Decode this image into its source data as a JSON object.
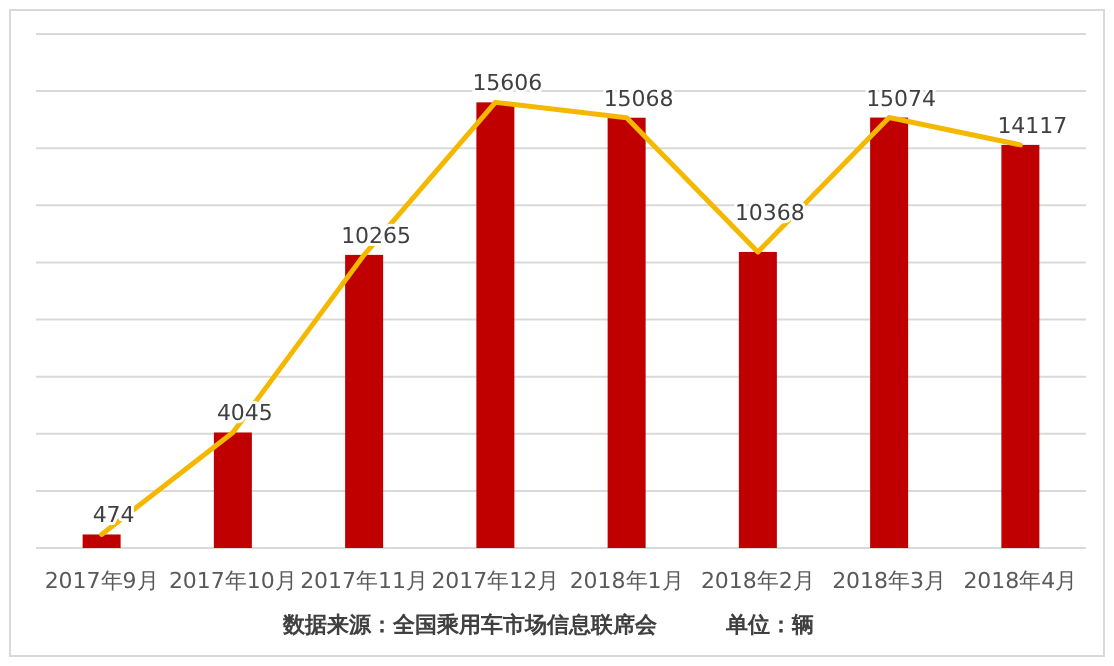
{
  "chart_data": {
    "type": "bar",
    "categories": [
      "2017年9月",
      "2017年10月",
      "2017年11月",
      "2017年12月",
      "2018年1月",
      "2018年2月",
      "2018年3月",
      "2018年4月"
    ],
    "series": [
      {
        "color": "#c00000",
        "values": [
          474,
          4045,
          10265,
          15606,
          15068,
          10368,
          15074,
          14117
        ],
        "value_labels": [
          "474",
          "4045",
          "10265",
          "15606",
          "15068",
          "10368",
          "15074",
          "14117"
        ]
      },
      {
        "type": "line",
        "color": "#f5b800",
        "values": [
          474,
          4045,
          10265,
          15606,
          15068,
          10368,
          15074,
          14117
        ]
      }
    ],
    "ylim": [
      0,
      18000
    ],
    "yticks": [
      {
        "value": 0,
        "label": null
      },
      {
        "value": 2000,
        "label": null
      },
      {
        "value": 4000,
        "label": null
      },
      {
        "value": 6000,
        "label": null
      },
      {
        "value": 8000,
        "label": null
      },
      {
        "value": 10000,
        "label": null
      },
      {
        "value": 12000,
        "label": null
      },
      {
        "value": 14000,
        "label": null
      },
      {
        "value": 16000,
        "label": null
      },
      {
        "value": 18000,
        "label": null
      }
    ],
    "tick_labels": "x",
    "grid": "y",
    "marker": "none",
    "line_style": "solid",
    "annotations": [
      "数据来源：全国乘用车市场信息联席会",
      "单位：辆"
    ]
  }
}
